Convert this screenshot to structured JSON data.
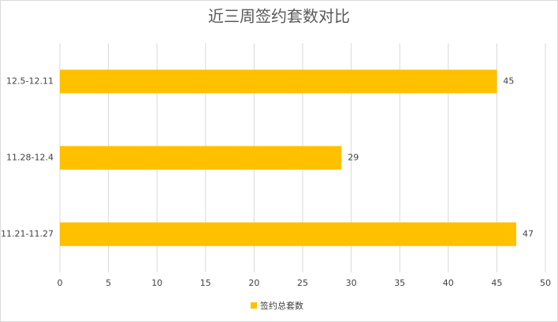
{
  "chart_data": {
    "type": "hbar",
    "title": "近三周签约套数对比",
    "categories": [
      "12.5-12.11",
      "11.28-12.4",
      "11.21-11.27"
    ],
    "series": [
      {
        "name": "签约总套数",
        "color": "#ffc000",
        "values": [
          45,
          29,
          47
        ]
      }
    ],
    "xlim": [
      0,
      50
    ],
    "xticks": [
      0,
      5,
      10,
      15,
      20,
      25,
      30,
      35,
      40,
      45,
      50
    ],
    "grid": true,
    "legend": "bottom"
  }
}
